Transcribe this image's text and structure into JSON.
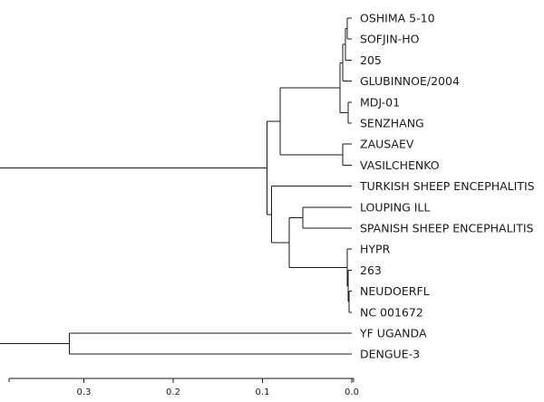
{
  "tree": {
    "taxa": [
      "OSHIMA 5-10",
      "SOFJIN-HO",
      "205",
      "GLUBINNOE/2004",
      "MDJ-01",
      "SENZHANG",
      "ZAUSAEV",
      "VASILCHENKO",
      "TURKISH SHEEP ENCEPHALITIS",
      "LOUPING ILL",
      "SPANISH SHEEP ENCEPHALITIS",
      "HYPR",
      "263",
      "NEUDOERFL",
      "NC 001672",
      "YF UGANDA",
      "DENGUE-3"
    ],
    "nodes": [
      {
        "id": "n1",
        "height": 0.005,
        "children": [
          "t0",
          "t1"
        ]
      },
      {
        "id": "n2",
        "height": 0.007,
        "children": [
          "n1",
          "t2"
        ]
      },
      {
        "id": "n3",
        "height": 0.01,
        "children": [
          "n2",
          "t3"
        ]
      },
      {
        "id": "n4",
        "height": 0.004,
        "children": [
          "t4",
          "t5"
        ]
      },
      {
        "id": "n5",
        "height": 0.013,
        "children": [
          "n3",
          "n4"
        ]
      },
      {
        "id": "n6",
        "height": 0.01,
        "children": [
          "t6",
          "t7"
        ]
      },
      {
        "id": "n7",
        "height": 0.08,
        "children": [
          "n5",
          "n6"
        ]
      },
      {
        "id": "n8",
        "height": 0.055,
        "children": [
          "t9",
          "t10"
        ]
      },
      {
        "id": "n9",
        "height": 0.003,
        "children": [
          "t13",
          "t14"
        ]
      },
      {
        "id": "n10",
        "height": 0.004,
        "children": [
          "t12",
          "n9"
        ]
      },
      {
        "id": "n11",
        "height": 0.005,
        "children": [
          "t11",
          "n10"
        ]
      },
      {
        "id": "n12",
        "height": 0.07,
        "children": [
          "n8",
          "n11"
        ]
      },
      {
        "id": "n13",
        "height": 0.09,
        "children": [
          "t8",
          "n12"
        ]
      },
      {
        "id": "n14",
        "height": 0.095,
        "children": [
          "n7",
          "n13"
        ]
      },
      {
        "id": "n15",
        "height": 0.316,
        "children": [
          "t15",
          "t16"
        ]
      },
      {
        "id": "root",
        "height": 0.4,
        "children": [
          "n14",
          "n15"
        ]
      }
    ]
  },
  "axis": {
    "ticks": [
      {
        "value": 0.3,
        "label": "0.3"
      },
      {
        "value": 0.2,
        "label": "0.2"
      },
      {
        "value": 0.1,
        "label": "0.1"
      },
      {
        "value": 0.0,
        "label": "0.0"
      }
    ],
    "range": [
      0.4,
      0.0
    ]
  },
  "colors": {
    "line": "#1a1a1a",
    "background": "#ffffff"
  }
}
